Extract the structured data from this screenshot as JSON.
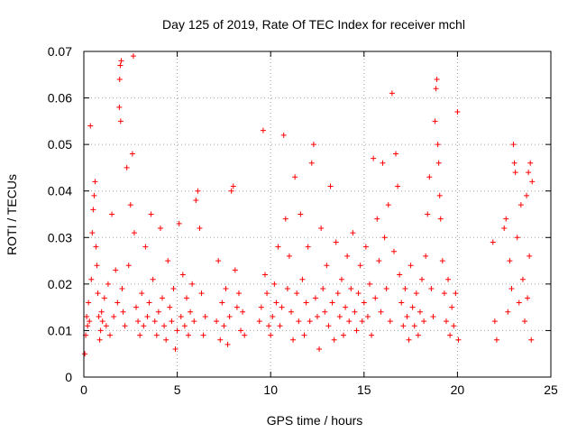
{
  "chart_data": {
    "type": "scatter",
    "title": "Day 125 of 2019, Rate Of TEC Index for receiver mchl",
    "xlabel": "GPS time / hours",
    "ylabel": "ROTI / TECUs",
    "xlim": [
      0,
      25
    ],
    "ylim": [
      0,
      0.07
    ],
    "xticks": [
      "0",
      "5",
      "10",
      "15",
      "20",
      "25"
    ],
    "yticks": [
      "0",
      "0.01",
      "0.02",
      "0.03",
      "0.04",
      "0.05",
      "0.06",
      "0.07"
    ],
    "grid": true,
    "marker": "+",
    "color": "#ff0000",
    "series": [
      {
        "points": [
          [
            0.05,
            0.005
          ],
          [
            0.1,
            0.009
          ],
          [
            0.15,
            0.013
          ],
          [
            0.2,
            0.011
          ],
          [
            0.25,
            0.016
          ],
          [
            0.3,
            0.012
          ],
          [
            0.35,
            0.054
          ],
          [
            0.4,
            0.021
          ],
          [
            0.45,
            0.031
          ],
          [
            0.5,
            0.036
          ],
          [
            0.55,
            0.039
          ],
          [
            0.6,
            0.042
          ],
          [
            0.65,
            0.028
          ],
          [
            0.7,
            0.024
          ],
          [
            0.75,
            0.018
          ],
          [
            0.8,
            0.013
          ],
          [
            0.85,
            0.008
          ],
          [
            0.9,
            0.01
          ],
          [
            0.95,
            0.014
          ],
          [
            1.0,
            0.012
          ],
          [
            1.1,
            0.017
          ],
          [
            1.2,
            0.011
          ],
          [
            1.3,
            0.02
          ],
          [
            1.4,
            0.009
          ],
          [
            1.5,
            0.035
          ],
          [
            1.6,
            0.013
          ],
          [
            1.7,
            0.023
          ],
          [
            1.8,
            0.016
          ],
          [
            1.9,
            0.058
          ],
          [
            1.95,
            0.067
          ],
          [
            2.0,
            0.068
          ],
          [
            1.92,
            0.064
          ],
          [
            1.97,
            0.055
          ],
          [
            2.05,
            0.019
          ],
          [
            2.1,
            0.014
          ],
          [
            2.2,
            0.011
          ],
          [
            2.3,
            0.045
          ],
          [
            2.4,
            0.024
          ],
          [
            2.5,
            0.037
          ],
          [
            2.6,
            0.048
          ],
          [
            2.65,
            0.069
          ],
          [
            2.7,
            0.031
          ],
          [
            2.8,
            0.015
          ],
          [
            2.9,
            0.012
          ],
          [
            3.0,
            0.009
          ],
          [
            3.1,
            0.018
          ],
          [
            3.2,
            0.011
          ],
          [
            3.3,
            0.028
          ],
          [
            3.4,
            0.013
          ],
          [
            3.5,
            0.016
          ],
          [
            3.6,
            0.035
          ],
          [
            3.7,
            0.021
          ],
          [
            3.8,
            0.012
          ],
          [
            3.9,
            0.009
          ],
          [
            4.0,
            0.014
          ],
          [
            4.1,
            0.032
          ],
          [
            4.2,
            0.017
          ],
          [
            4.3,
            0.011
          ],
          [
            4.4,
            0.008
          ],
          [
            4.5,
            0.025
          ],
          [
            4.6,
            0.015
          ],
          [
            4.7,
            0.012
          ],
          [
            4.8,
            0.019
          ],
          [
            4.9,
            0.006
          ],
          [
            5.0,
            0.01
          ],
          [
            5.1,
            0.033
          ],
          [
            5.2,
            0.013
          ],
          [
            5.3,
            0.022
          ],
          [
            5.4,
            0.011
          ],
          [
            5.5,
            0.017
          ],
          [
            5.6,
            0.009
          ],
          [
            5.7,
            0.014
          ],
          [
            5.8,
            0.02
          ],
          [
            5.9,
            0.012
          ],
          [
            6.0,
            0.038
          ],
          [
            6.1,
            0.04
          ],
          [
            6.2,
            0.032
          ],
          [
            6.3,
            0.018
          ],
          [
            6.4,
            0.009
          ],
          [
            6.5,
            0.013
          ],
          [
            7.1,
            0.012
          ],
          [
            7.2,
            0.025
          ],
          [
            7.3,
            0.008
          ],
          [
            7.4,
            0.016
          ],
          [
            7.5,
            0.011
          ],
          [
            7.6,
            0.019
          ],
          [
            7.7,
            0.007
          ],
          [
            7.8,
            0.013
          ],
          [
            7.9,
            0.04
          ],
          [
            8.0,
            0.041
          ],
          [
            8.1,
            0.023
          ],
          [
            8.2,
            0.015
          ],
          [
            8.3,
            0.018
          ],
          [
            8.4,
            0.01
          ],
          [
            8.5,
            0.014
          ],
          [
            8.6,
            0.009
          ],
          [
            9.4,
            0.012
          ],
          [
            9.5,
            0.015
          ],
          [
            9.6,
            0.053
          ],
          [
            9.7,
            0.022
          ],
          [
            9.8,
            0.018
          ],
          [
            9.9,
            0.011
          ],
          [
            10.0,
            0.009
          ],
          [
            10.1,
            0.013
          ],
          [
            10.2,
            0.02
          ],
          [
            10.3,
            0.016
          ],
          [
            10.4,
            0.028
          ],
          [
            10.5,
            0.011
          ],
          [
            10.6,
            0.015
          ],
          [
            10.7,
            0.052
          ],
          [
            10.8,
            0.034
          ],
          [
            10.9,
            0.019
          ],
          [
            11.0,
            0.026
          ],
          [
            11.1,
            0.014
          ],
          [
            11.2,
            0.008
          ],
          [
            11.3,
            0.043
          ],
          [
            11.4,
            0.018
          ],
          [
            11.5,
            0.012
          ],
          [
            11.6,
            0.035
          ],
          [
            11.7,
            0.021
          ],
          [
            11.8,
            0.009
          ],
          [
            11.9,
            0.016
          ],
          [
            12.0,
            0.028
          ],
          [
            12.1,
            0.012
          ],
          [
            12.2,
            0.046
          ],
          [
            12.3,
            0.05
          ],
          [
            12.4,
            0.017
          ],
          [
            12.5,
            0.013
          ],
          [
            12.6,
            0.006
          ],
          [
            12.7,
            0.032
          ],
          [
            12.8,
            0.019
          ],
          [
            12.9,
            0.014
          ],
          [
            13.0,
            0.024
          ],
          [
            13.1,
            0.011
          ],
          [
            13.2,
            0.041
          ],
          [
            13.3,
            0.016
          ],
          [
            13.4,
            0.008
          ],
          [
            13.5,
            0.029
          ],
          [
            13.6,
            0.018
          ],
          [
            13.7,
            0.013
          ],
          [
            13.8,
            0.021
          ],
          [
            13.9,
            0.009
          ],
          [
            14.0,
            0.015
          ],
          [
            14.1,
            0.026
          ],
          [
            14.2,
            0.012
          ],
          [
            14.3,
            0.019
          ],
          [
            14.4,
            0.031
          ],
          [
            14.5,
            0.014
          ],
          [
            14.6,
            0.01
          ],
          [
            14.7,
            0.018
          ],
          [
            14.8,
            0.024
          ],
          [
            14.9,
            0.012
          ],
          [
            15.0,
            0.016
          ],
          [
            15.1,
            0.028
          ],
          [
            15.2,
            0.013
          ],
          [
            15.3,
            0.02
          ],
          [
            15.4,
            0.009
          ],
          [
            15.5,
            0.047
          ],
          [
            15.6,
            0.017
          ],
          [
            15.7,
            0.034
          ],
          [
            15.8,
            0.025
          ],
          [
            15.9,
            0.014
          ],
          [
            16.0,
            0.046
          ],
          [
            16.1,
            0.03
          ],
          [
            16.2,
            0.019
          ],
          [
            16.3,
            0.037
          ],
          [
            16.4,
            0.012
          ],
          [
            16.5,
            0.061
          ],
          [
            16.6,
            0.027
          ],
          [
            16.7,
            0.048
          ],
          [
            16.8,
            0.041
          ],
          [
            16.9,
            0.022
          ],
          [
            17.0,
            0.016
          ],
          [
            17.1,
            0.011
          ],
          [
            17.2,
            0.019
          ],
          [
            17.3,
            0.013
          ],
          [
            17.4,
            0.008
          ],
          [
            17.5,
            0.024
          ],
          [
            17.6,
            0.015
          ],
          [
            17.7,
            0.011
          ],
          [
            17.8,
            0.018
          ],
          [
            17.9,
            0.009
          ],
          [
            18.0,
            0.014
          ],
          [
            18.1,
            0.021
          ],
          [
            18.2,
            0.012
          ],
          [
            18.3,
            0.026
          ],
          [
            18.4,
            0.035
          ],
          [
            18.5,
            0.043
          ],
          [
            18.6,
            0.019
          ],
          [
            18.7,
            0.013
          ],
          [
            18.8,
            0.055
          ],
          [
            18.85,
            0.062
          ],
          [
            18.9,
            0.064
          ],
          [
            18.95,
            0.05
          ],
          [
            19.0,
            0.046
          ],
          [
            19.05,
            0.039
          ],
          [
            19.1,
            0.034
          ],
          [
            19.2,
            0.025
          ],
          [
            19.3,
            0.018
          ],
          [
            19.4,
            0.012
          ],
          [
            19.5,
            0.021
          ],
          [
            19.6,
            0.009
          ],
          [
            19.7,
            0.015
          ],
          [
            19.8,
            0.011
          ],
          [
            19.9,
            0.018
          ],
          [
            20.0,
            0.057
          ],
          [
            20.05,
            0.008
          ],
          [
            21.9,
            0.029
          ],
          [
            22.0,
            0.012
          ],
          [
            22.1,
            0.008
          ],
          [
            22.5,
            0.032
          ],
          [
            22.6,
            0.034
          ],
          [
            22.7,
            0.014
          ],
          [
            22.8,
            0.025
          ],
          [
            22.9,
            0.019
          ],
          [
            23.0,
            0.05
          ],
          [
            23.05,
            0.046
          ],
          [
            23.1,
            0.044
          ],
          [
            23.2,
            0.03
          ],
          [
            23.3,
            0.016
          ],
          [
            23.4,
            0.037
          ],
          [
            23.5,
            0.021
          ],
          [
            23.6,
            0.012
          ],
          [
            23.7,
            0.039
          ],
          [
            23.8,
            0.044
          ],
          [
            23.9,
            0.046
          ],
          [
            24.0,
            0.042
          ],
          [
            23.75,
            0.017
          ],
          [
            23.85,
            0.026
          ],
          [
            23.95,
            0.008
          ]
        ]
      }
    ]
  }
}
